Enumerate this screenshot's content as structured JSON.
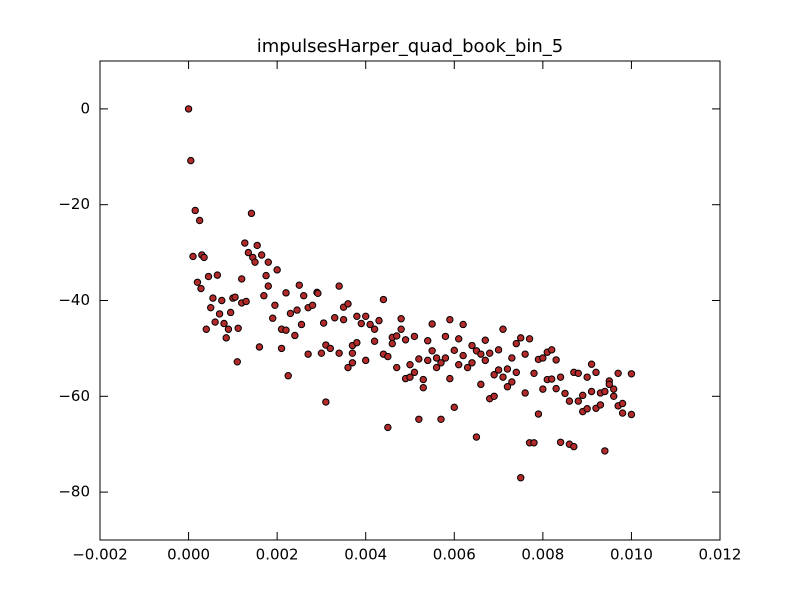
{
  "chart_data": {
    "type": "scatter",
    "title": "impulsesHarper_quad_book_bin_5",
    "xlim": [
      -0.002,
      0.012
    ],
    "ylim": [
      -90,
      10
    ],
    "xticks": [
      {
        "value": -0.002,
        "label": "−0.002"
      },
      {
        "value": 0,
        "label": "0.000"
      },
      {
        "value": 0.002,
        "label": "0.002"
      },
      {
        "value": 0.004,
        "label": "0.004"
      },
      {
        "value": 0.006,
        "label": "0.006"
      },
      {
        "value": 0.008,
        "label": "0.008"
      },
      {
        "value": 0.01,
        "label": "0.010"
      },
      {
        "value": 0.012,
        "label": "0.012"
      }
    ],
    "yticks": [
      {
        "value": -80,
        "label": "−80"
      },
      {
        "value": -60,
        "label": "−60"
      },
      {
        "value": -40,
        "label": "−40"
      },
      {
        "value": -20,
        "label": "−20"
      },
      0
    ],
    "grid": false,
    "series": [
      {
        "color": "#b22a2a",
        "x": [
          0,
          5e-05,
          0.00015,
          0.00025,
          0.0001,
          0.0003,
          0.00035,
          0.0002,
          0.00028,
          0.00045,
          0.00065,
          0.00055,
          0.0005,
          0.0004,
          0.0006,
          0.0007,
          0.00075,
          0.0008,
          0.00085,
          0.0009,
          0.00095,
          0.001,
          0.00105,
          0.0011,
          0.00112,
          0.0012,
          0.0012,
          0.00127,
          0.0013,
          0.00135,
          0.00142,
          0.00145,
          0.0015,
          0.00155,
          0.0016,
          0.00165,
          0.0017,
          0.0018,
          0.0018,
          0.00175,
          0.0019,
          0.00195,
          0.002,
          0.0021,
          0.0021,
          0.0022,
          0.0022,
          0.0023,
          0.00225,
          0.0024,
          0.00245,
          0.0025,
          0.0026,
          0.00255,
          0.0027,
          0.0027,
          0.0028,
          0.0029,
          0.00292,
          0.003,
          0.00305,
          0.0031,
          0.0031,
          0.0032,
          0.0033,
          0.0034,
          0.0034,
          0.0035,
          0.0035,
          0.0036,
          0.0036,
          0.0037,
          0.0037,
          0.0037,
          0.0038,
          0.0038,
          0.0039,
          0.004,
          0.004,
          0.0041,
          0.0042,
          0.0042,
          0.0043,
          0.0044,
          0.0044,
          0.0045,
          0.0045,
          0.0046,
          0.0046,
          0.0047,
          0.0047,
          0.0048,
          0.0048,
          0.0049,
          0.0049,
          0.005,
          0.005,
          0.0051,
          0.0051,
          0.0052,
          0.0052,
          0.0053,
          0.0053,
          0.0054,
          0.0054,
          0.0055,
          0.0055,
          0.0056,
          0.0056,
          0.0057,
          0.0057,
          0.0058,
          0.0058,
          0.0059,
          0.0059,
          0.006,
          0.006,
          0.0061,
          0.0061,
          0.0062,
          0.0062,
          0.0063,
          0.0064,
          0.0064,
          0.0065,
          0.0065,
          0.0066,
          0.0066,
          0.0067,
          0.0067,
          0.0068,
          0.0068,
          0.0069,
          0.0069,
          0.007,
          0.007,
          0.0071,
          0.0071,
          0.0072,
          0.0072,
          0.0073,
          0.0073,
          0.0074,
          0.0074,
          0.0075,
          0.0075,
          0.0076,
          0.0076,
          0.0077,
          0.0077,
          0.0078,
          0.0078,
          0.0079,
          0.0079,
          0.008,
          0.008,
          0.0081,
          0.0081,
          0.0082,
          0.0082,
          0.0083,
          0.0083,
          0.0084,
          0.0084,
          0.0085,
          0.0086,
          0.0086,
          0.0087,
          0.0087,
          0.0088,
          0.0088,
          0.0089,
          0.0089,
          0.009,
          0.009,
          0.0091,
          0.0091,
          0.0092,
          0.0092,
          0.0093,
          0.0093,
          0.0094,
          0.0094,
          0.0095,
          0.0095,
          0.0096,
          0.0096,
          0.0097,
          0.0097,
          0.0098,
          0.0098,
          0.01,
          0.01
        ],
        "values": [
          0,
          -10.8,
          -21.2,
          -23.3,
          -30.8,
          -30.5,
          -31,
          -36.2,
          -37.5,
          -35,
          -34.7,
          -39.5,
          -41.5,
          -46,
          -44.5,
          -42.8,
          -40,
          -44.8,
          -47.8,
          -46,
          -42.5,
          -39.5,
          -39.3,
          -52.8,
          -45.8,
          -40.5,
          -35.5,
          -28,
          -40.2,
          -30,
          -21.8,
          -31,
          -32,
          -28.5,
          -49.7,
          -30.5,
          -39,
          -37,
          -32,
          -34.8,
          -43.7,
          -41,
          -33.6,
          -46,
          -50,
          -38.4,
          -46.2,
          -42.7,
          -55.7,
          -47.3,
          -42,
          -36.8,
          -39,
          -45,
          -51.2,
          -41.5,
          -41,
          -38.3,
          -38.5,
          -51,
          -44.7,
          -49.3,
          -61.2,
          -50,
          -43.6,
          -37,
          -51,
          -41.4,
          -44,
          -40.7,
          -54,
          -49.4,
          -51,
          -53,
          -43.3,
          -48.8,
          -44.8,
          -43.3,
          -52.5,
          -45,
          -46,
          -48.5,
          -44.2,
          -39.8,
          -51.2,
          -51.7,
          -66.5,
          -47.7,
          -49,
          -47.4,
          -54,
          -43.8,
          -46,
          -48.2,
          -56.3,
          -56,
          -53.4,
          -47.5,
          -55,
          -64.8,
          -52.2,
          -56.5,
          -58.2,
          -48.4,
          -52.5,
          -44.9,
          -50.5,
          -52,
          -54,
          -53,
          -64.8,
          -47.5,
          -52,
          -44,
          -56.3,
          -62.3,
          -50.4,
          -53.4,
          -48,
          -45,
          -51.5,
          -54,
          -49.4,
          -53,
          -50.5,
          -68.5,
          -51.2,
          -57.5,
          -48.3,
          -52.5,
          -51,
          -60.5,
          -55.5,
          -60,
          -50.3,
          -54.5,
          -46,
          -56,
          -54.3,
          -58,
          -52,
          -57,
          -49,
          -55,
          -77,
          -47.8,
          -51.2,
          -59.3,
          -69.7,
          -48,
          -55.2,
          -69.7,
          -52.3,
          -63.7,
          -58.5,
          -52,
          -50.8,
          -56.5,
          -50.3,
          -56.4,
          -52.4,
          -58.4,
          -69.6,
          -56,
          -59.4,
          -70,
          -61,
          -70.5,
          -55,
          -55.2,
          -61,
          -63.2,
          -59.8,
          -56,
          -62.6,
          -53.3,
          -59,
          -55,
          -62.5,
          -61.8,
          -59.3,
          -59,
          -71.4,
          -56.8,
          -57.5,
          -60,
          -58.5,
          -62,
          -55.2,
          -63.5,
          -61.5,
          -55.3,
          -63.8
        ]
      }
    ]
  }
}
